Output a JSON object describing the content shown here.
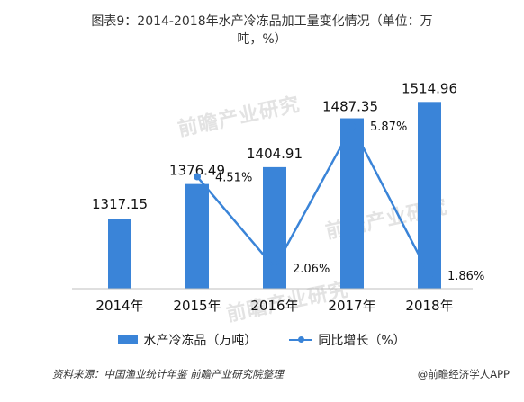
{
  "title_line1": "图表9：2014-2018年水产冷冻品加工量变化情况（单位：万",
  "title_line2": "吨，%）",
  "source": "资料来源：中国渔业统计年鉴 前瞻产业研究院整理",
  "brand": "@前瞻经济学人APP",
  "watermark": "前瞻产业研究",
  "colors": {
    "bar": "#3a84d8",
    "line": "#3a84d8"
  },
  "chart_data": {
    "type": "bar",
    "categories": [
      "2014年",
      "2015年",
      "2016年",
      "2017年",
      "2018年"
    ],
    "series": [
      {
        "name": "水产冷冻品（万吨）",
        "type": "bar",
        "values": [
          1317.15,
          1376.49,
          1404.91,
          1487.35,
          1514.96
        ],
        "labels": [
          "1317.15",
          "1376.49",
          "1404.91",
          "1487.35",
          "1514.96"
        ]
      },
      {
        "name": "同比增长（%）",
        "type": "line",
        "values": [
          null,
          4.51,
          2.06,
          5.87,
          1.86
        ],
        "labels": [
          "",
          "4.51%",
          "2.06%",
          "5.87%",
          "1.86%"
        ]
      }
    ],
    "bar_axis_range": [
      1200,
      1520
    ],
    "line_axis_range": [
      1.5,
      6.6
    ],
    "grid": false,
    "legend_position": "bottom"
  }
}
